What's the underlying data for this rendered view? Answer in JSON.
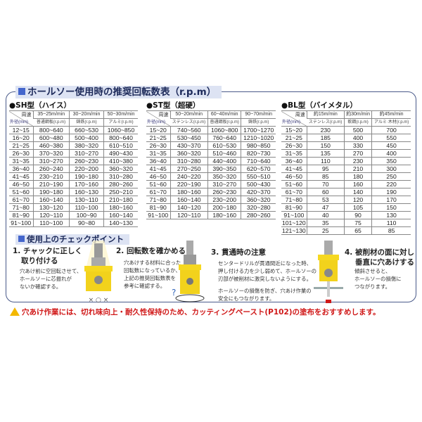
{
  "title": "ホールソー使用時の推奨回転数表（r.p.m）",
  "corner": {
    "speed": "周速",
    "diameter": "外径(mm)"
  },
  "tables": [
    {
      "title": "●SH型（ハイス）",
      "speeds": [
        "35~25m/min",
        "30~20m/min",
        "50~30m/min"
      ],
      "materials": [
        "普通鋼板(r.p.m)",
        "鋳鉄(r.p.m)",
        "アルミ(r.p.m)"
      ],
      "rows": [
        [
          "12~15",
          "800~640",
          "660~530",
          "1060~850"
        ],
        [
          "16~20",
          "600~480",
          "500~400",
          "800~640"
        ],
        [
          "21~25",
          "460~380",
          "380~320",
          "610~510"
        ],
        [
          "26~30",
          "370~320",
          "310~270",
          "490~430"
        ],
        [
          "31~35",
          "310~270",
          "260~230",
          "410~380"
        ],
        [
          "36~40",
          "260~240",
          "220~200",
          "360~320"
        ],
        [
          "41~45",
          "230~210",
          "190~180",
          "310~280"
        ],
        [
          "46~50",
          "210~190",
          "170~160",
          "280~260"
        ],
        [
          "51~60",
          "190~180",
          "160~130",
          "250~210"
        ],
        [
          "61~70",
          "160~140",
          "130~110",
          "210~180"
        ],
        [
          "71~80",
          "130~120",
          "110~100",
          "180~160"
        ],
        [
          "81~90",
          "120~110",
          "100~90",
          "160~140"
        ],
        [
          "91~100",
          "110~100",
          "90~80",
          "140~130"
        ]
      ]
    },
    {
      "title": "●ST型（超硬）",
      "speeds": [
        "50~20m/min",
        "60~40m/min",
        "90~70m/min"
      ],
      "materials": [
        "ステンレス(r.p.m)",
        "普通鋼板(r.p.m)",
        "鋳鉄(r.p.m)"
      ],
      "rows": [
        [
          "15~20",
          "740~560",
          "1060~800",
          "1700~1270"
        ],
        [
          "21~25",
          "530~450",
          "760~640",
          "1210~1020"
        ],
        [
          "26~30",
          "430~370",
          "610~530",
          "980~850"
        ],
        [
          "31~35",
          "360~320",
          "510~460",
          "820~730"
        ],
        [
          "36~40",
          "310~280",
          "440~400",
          "710~640"
        ],
        [
          "41~45",
          "270~250",
          "390~350",
          "620~570"
        ],
        [
          "46~50",
          "240~220",
          "350~320",
          "550~510"
        ],
        [
          "51~60",
          "220~190",
          "310~270",
          "500~430"
        ],
        [
          "61~70",
          "180~160",
          "260~230",
          "420~370"
        ],
        [
          "71~80",
          "160~140",
          "230~200",
          "360~320"
        ],
        [
          "81~90",
          "140~120",
          "200~180",
          "320~280"
        ],
        [
          "91~100",
          "120~110",
          "180~160",
          "280~260"
        ]
      ]
    },
    {
      "title": "●BL型（バイメタル）",
      "speeds": [
        "約15m/min",
        "約30m/min",
        "約45m/min"
      ],
      "materials": [
        "ステンレス(r.p.m)",
        "軟鋼(r.p.m)",
        "アルミ·木材(r.p.m)"
      ],
      "rows": [
        [
          "15~20",
          "230",
          "500",
          "700"
        ],
        [
          "21~25",
          "185",
          "400",
          "550"
        ],
        [
          "26~30",
          "150",
          "330",
          "450"
        ],
        [
          "31~35",
          "135",
          "270",
          "400"
        ],
        [
          "36~40",
          "110",
          "230",
          "350"
        ],
        [
          "41~45",
          "95",
          "210",
          "300"
        ],
        [
          "46~50",
          "85",
          "180",
          "250"
        ],
        [
          "51~60",
          "70",
          "160",
          "220"
        ],
        [
          "61~70",
          "60",
          "140",
          "190"
        ],
        [
          "71~80",
          "53",
          "120",
          "170"
        ],
        [
          "81~90",
          "47",
          "105",
          "150"
        ],
        [
          "91~100",
          "40",
          "90",
          "130"
        ],
        [
          "101~120",
          "35",
          "75",
          "110"
        ],
        [
          "121~130",
          "25",
          "65",
          "85"
        ]
      ]
    }
  ],
  "checkpoints": {
    "title": "使用上のチェックポイント",
    "items": [
      {
        "heading1": "1. チャックに正しく",
        "heading2": "取り付ける",
        "lines": [
          "穴あけ前に空回転させて、",
          "ホールソーに芯振れが",
          "ないか確認する。"
        ],
        "marks": "× ○ ×"
      },
      {
        "heading1": "2. 回転数を確かめる",
        "lines": [
          "穴あけする材料に合った",
          "回転数になっているか、",
          "上記の推奨回転数表を",
          "参考に確認する。"
        ],
        "marks": "?"
      },
      {
        "heading1": "3. 貫通時の注意",
        "lines": [
          "センタードリルが貫通間近になった時、",
          "押し付ける力を少し弱めて、ホールソーの",
          "刃部が被削材に激突しないようにする。"
        ],
        "lines2": [
          "ホールソーの損傷を防ぎ、穴あけ作業の",
          "安全にもつながります。"
        ]
      },
      {
        "heading1": "4. 被削材の面に対し",
        "heading2": "垂直に穴あけする",
        "lines": [
          "傾斜させると、",
          "ホールソーの損傷に",
          "つながります。"
        ]
      }
    ]
  },
  "warning": "穴あけ作業には、切れ味向上・耐久性保持のため、カッティングペースト(P102)の塗布をおすすめします。",
  "colors": {
    "accent": "#4466cc",
    "warning": "#d01818",
    "saw": "#f2d21c"
  }
}
